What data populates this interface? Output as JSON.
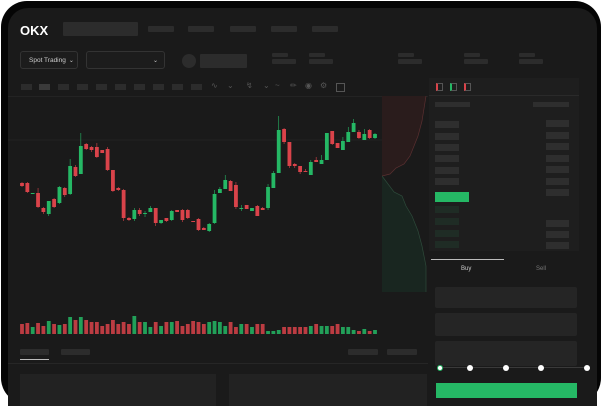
{
  "header": {
    "logo": "OKX",
    "nav_items": 5
  },
  "toolbar": {
    "market_selector": "Spot Trading",
    "chevron": "chevron-down-icon"
  },
  "order_form": {
    "buy_tab": "Buy",
    "sell_tab": "Sell",
    "slider_level": 0
  },
  "colors": {
    "up": "#25b865",
    "down": "#d9434a",
    "bg": "#1a1a1a"
  },
  "chart_data": {
    "type": "candlestick",
    "title": "",
    "grid": false,
    "candles": [
      [
        118,
        119,
        114,
        115
      ],
      [
        118,
        119,
        108,
        109
      ],
      [
        107,
        108,
        107,
        108
      ],
      [
        108,
        113,
        93,
        94
      ],
      [
        93,
        94,
        87,
        89
      ],
      [
        87,
        100,
        85,
        100
      ],
      [
        102,
        103,
        93,
        94
      ],
      [
        98,
        115,
        97,
        114
      ],
      [
        113,
        114,
        104,
        106
      ],
      [
        107,
        142,
        106,
        135
      ],
      [
        134,
        136,
        124,
        125
      ],
      [
        127,
        168,
        127,
        155
      ],
      [
        157,
        158,
        151,
        152
      ],
      [
        154,
        155,
        149,
        151
      ],
      [
        154,
        158,
        143,
        144
      ],
      [
        151,
        151,
        148,
        148
      ],
      [
        152,
        154,
        130,
        131
      ],
      [
        131,
        131,
        109,
        110
      ],
      [
        113,
        114,
        110,
        111
      ],
      [
        111,
        112,
        80,
        83
      ],
      [
        83,
        84,
        80,
        81
      ],
      [
        82,
        93,
        80,
        91
      ],
      [
        91,
        93,
        85,
        87
      ],
      [
        87,
        90,
        84,
        88
      ],
      [
        89,
        95,
        89,
        93
      ],
      [
        93,
        93,
        75,
        78
      ],
      [
        78,
        81,
        77,
        81
      ],
      [
        83,
        83,
        79,
        80
      ],
      [
        81,
        91,
        80,
        90
      ],
      [
        91,
        91,
        89,
        89
      ],
      [
        91,
        92,
        79,
        81
      ],
      [
        91,
        92,
        82,
        83
      ],
      [
        80,
        80,
        79,
        79
      ],
      [
        82,
        83,
        70,
        71
      ],
      [
        73,
        74,
        71,
        71
      ],
      [
        70,
        78,
        69,
        77
      ],
      [
        78,
        111,
        77,
        107
      ],
      [
        108,
        114,
        108,
        112
      ],
      [
        112,
        126,
        112,
        121
      ],
      [
        120,
        121,
        110,
        110
      ],
      [
        116,
        119,
        92,
        94
      ],
      [
        93,
        96,
        90,
        93
      ],
      [
        96,
        96,
        92,
        92
      ],
      [
        90,
        93,
        90,
        93
      ],
      [
        95,
        96,
        85,
        85
      ],
      [
        93,
        94,
        91,
        91
      ],
      [
        93,
        117,
        91,
        114
      ],
      [
        113,
        130,
        113,
        128
      ],
      [
        128,
        185,
        128,
        171
      ],
      [
        172,
        173,
        157,
        159
      ],
      [
        159,
        159,
        133,
        135
      ],
      [
        137,
        138,
        133,
        135
      ],
      [
        135,
        135,
        127,
        129
      ],
      [
        130,
        132,
        129,
        129
      ],
      [
        126,
        141,
        126,
        139
      ],
      [
        141,
        144,
        139,
        139
      ],
      [
        137,
        146,
        137,
        141
      ],
      [
        141,
        168,
        141,
        168
      ],
      [
        170,
        170,
        156,
        157
      ],
      [
        158,
        158,
        153,
        153
      ],
      [
        151,
        164,
        151,
        160
      ],
      [
        159,
        174,
        159,
        169
      ],
      [
        169,
        182,
        169,
        178
      ],
      [
        169,
        171,
        162,
        163
      ],
      [
        161,
        172,
        161,
        167
      ],
      [
        171,
        172,
        162,
        163
      ],
      [
        163,
        168,
        162,
        167
      ]
    ],
    "volumes": [
      10,
      11,
      7,
      11,
      8,
      13,
      10,
      9,
      10,
      17,
      14,
      17,
      14,
      12,
      12,
      8,
      10,
      14,
      10,
      12,
      10,
      18,
      12,
      12,
      7,
      12,
      8,
      12,
      12,
      13,
      8,
      10,
      13,
      12,
      10,
      12,
      13,
      12,
      8,
      12,
      7,
      10,
      10,
      7,
      10,
      10,
      3,
      3,
      4,
      7,
      7,
      7,
      7,
      7,
      8,
      10,
      8,
      8,
      8,
      10,
      7,
      7,
      4,
      3,
      5,
      3,
      4
    ]
  }
}
